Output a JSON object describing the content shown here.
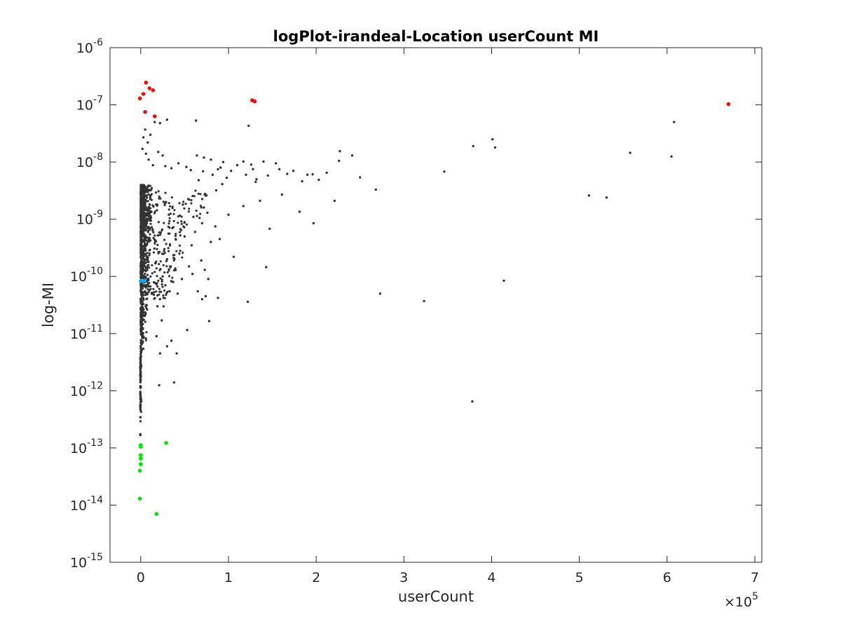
{
  "chart_data": {
    "type": "scatter",
    "title": "logPlot-irandeal-Location userCount MI",
    "xlabel": "userCount",
    "ylabel": "log-MI",
    "x_multiplier_label": "×10",
    "x_multiplier_exponent": "5",
    "xlim": [
      -35000,
      708000
    ],
    "ylim": [
      1e-15,
      1e-06
    ],
    "yscale": "log",
    "grid": false,
    "x_ticks": [
      {
        "value": 0,
        "label": "0"
      },
      {
        "value": 100000,
        "label": "1"
      },
      {
        "value": 200000,
        "label": "2"
      },
      {
        "value": 300000,
        "label": "3"
      },
      {
        "value": 400000,
        "label": "4"
      },
      {
        "value": 500000,
        "label": "5"
      },
      {
        "value": 600000,
        "label": "6"
      },
      {
        "value": 700000,
        "label": "7"
      }
    ],
    "y_ticks": [
      {
        "value": 1e-15,
        "base": "10",
        "exp": "-15"
      },
      {
        "value": 1e-14,
        "base": "10",
        "exp": "-14"
      },
      {
        "value": 1e-13,
        "base": "10",
        "exp": "-13"
      },
      {
        "value": 1e-12,
        "base": "10",
        "exp": "-12"
      },
      {
        "value": 1e-11,
        "base": "10",
        "exp": "-11"
      },
      {
        "value": 1e-10,
        "base": "10",
        "exp": "-10"
      },
      {
        "value": 1e-09,
        "base": "10",
        "exp": "-9"
      },
      {
        "value": 1e-08,
        "base": "10",
        "exp": "-8"
      },
      {
        "value": 1e-07,
        "base": "10",
        "exp": "-7"
      },
      {
        "value": 1e-06,
        "base": "10",
        "exp": "-6"
      }
    ],
    "series": [
      {
        "color": "#333333",
        "values": [
          [
            63000,
            5.3e-08
          ],
          [
            123000,
            4.3e-08
          ],
          [
            608000,
            5e-08
          ],
          [
            401000,
            2.5e-08
          ],
          [
            379000,
            1.9e-08
          ],
          [
            404000,
            1.8e-08
          ],
          [
            558000,
            1.45e-08
          ],
          [
            605000,
            1.25e-08
          ],
          [
            227000,
            1.55e-08
          ],
          [
            241000,
            1.3e-08
          ],
          [
            226000,
            1.05e-08
          ],
          [
            346000,
            6.8e-09
          ],
          [
            250000,
            5.4e-09
          ],
          [
            268000,
            3.3e-09
          ],
          [
            161000,
            2.7e-09
          ],
          [
            511000,
            2.6e-09
          ],
          [
            531000,
            2.4e-09
          ],
          [
            221000,
            2.1e-09
          ],
          [
            136000,
            2.1e-09
          ],
          [
            117000,
            1.7e-09
          ],
          [
            181000,
            1.35e-09
          ],
          [
            197000,
            8.5e-10
          ],
          [
            147000,
            6.8e-10
          ],
          [
            106000,
            2.2e-10
          ],
          [
            143000,
            1.45e-10
          ],
          [
            414000,
            8.4e-11
          ],
          [
            273000,
            5e-11
          ],
          [
            323000,
            3.7e-11
          ],
          [
            122000,
            3.6e-11
          ],
          [
            78000,
            1.65e-11
          ],
          [
            53000,
            1.15e-11
          ],
          [
            41000,
            4.5e-12
          ],
          [
            38000,
            1.4e-12
          ],
          [
            21000,
            1.25e-12
          ],
          [
            378000,
            6.5e-13
          ],
          [
            154000,
            9.5e-09
          ],
          [
            174000,
            7e-09
          ],
          [
            190000,
            6e-09
          ],
          [
            212000,
            6.5e-09
          ],
          [
            184000,
            4.6e-09
          ],
          [
            196000,
            6.1e-09
          ],
          [
            128000,
            7.5e-09
          ],
          [
            132000,
            5e-09
          ],
          [
            140000,
            1.02e-08
          ],
          [
            126000,
            9e-09
          ],
          [
            110000,
            8.8e-09
          ],
          [
            98000,
            5.3e-09
          ],
          [
            93000,
            4.1e-09
          ],
          [
            86000,
            3.2e-09
          ],
          [
            75000,
            2.6e-09
          ],
          [
            82000,
            6e-09
          ],
          [
            71000,
            6.9e-09
          ],
          [
            66000,
            4.8e-09
          ],
          [
            88000,
            7.5e-09
          ],
          [
            94000,
            1e-08
          ],
          [
            55000,
            2.2e-09
          ],
          [
            48000,
            1.8e-09
          ],
          [
            60000,
            1.1e-09
          ],
          [
            70000,
            8.5e-10
          ],
          [
            62000,
            6e-10
          ],
          [
            58000,
            3.5e-10
          ],
          [
            45000,
            2.8e-10
          ],
          [
            50000,
            5e-10
          ],
          [
            80000,
            4e-10
          ],
          [
            90000,
            4.5e-10
          ],
          [
            72000,
            1.6e-09
          ],
          [
            76000,
            1.3e-09
          ],
          [
            67000,
            1.05e-09
          ],
          [
            100000,
            1.2e-09
          ],
          [
            85000,
            7.5e-10
          ],
          [
            32000,
            1.2e-09
          ],
          [
            36000,
            7e-10
          ],
          [
            40000,
            4.4e-10
          ],
          [
            44000,
            2.5e-10
          ],
          [
            27000,
            3e-10
          ],
          [
            30000,
            2e-10
          ],
          [
            34000,
            1.5e-10
          ],
          [
            25000,
            1e-10
          ],
          [
            28000,
            7e-11
          ],
          [
            33000,
            5.5e-11
          ],
          [
            22000,
            4e-11
          ],
          [
            26000,
            3e-11
          ],
          [
            37000,
            8e-11
          ],
          [
            42000,
            5e-11
          ],
          [
            47000,
            9e-11
          ],
          [
            65000,
            5.5e-11
          ],
          [
            70000,
            4e-11
          ],
          [
            74000,
            4.5e-11
          ],
          [
            88000,
            4.2e-11
          ],
          [
            59000,
            1.1e-10
          ],
          [
            55000,
            1.5e-10
          ],
          [
            69000,
            1.9e-10
          ],
          [
            73000,
            1.3e-10
          ],
          [
            77000,
            9e-11
          ],
          [
            30000,
            6e-12
          ],
          [
            18000,
            9e-12
          ],
          [
            22000,
            4.5e-12
          ],
          [
            35000,
            7.5e-12
          ],
          [
            24000,
            1.7e-11
          ],
          [
            19000,
            3e-11
          ],
          [
            16000,
            5e-08
          ],
          [
            11000,
            3e-08
          ],
          [
            8000,
            2.2e-08
          ],
          [
            5000,
            3.7e-08
          ],
          [
            3000,
            2.7e-08
          ],
          [
            2000,
            1.7e-08
          ],
          [
            6000,
            1.4e-08
          ],
          [
            9000,
            1.1e-08
          ],
          [
            14000,
            8.8e-09
          ],
          [
            20000,
            1.5e-08
          ],
          [
            25000,
            1.3e-08
          ],
          [
            28000,
            8.5e-09
          ],
          [
            35000,
            7.8e-09
          ],
          [
            43000,
            9.5e-09
          ],
          [
            52000,
            8.2e-09
          ],
          [
            57000,
            7.2e-09
          ],
          [
            64000,
            1.3e-08
          ],
          [
            72000,
            1.2e-08
          ],
          [
            80000,
            1.1e-08
          ],
          [
            91000,
            8e-09
          ],
          [
            103000,
            7e-09
          ],
          [
            117000,
            1.02e-08
          ],
          [
            120000,
            6e-09
          ],
          [
            131000,
            4.5e-09
          ],
          [
            145000,
            5.8e-09
          ],
          [
            158000,
            7.5e-09
          ],
          [
            167000,
            6.2e-09
          ],
          [
            203000,
            4.9e-09
          ],
          [
            30000,
            5.5e-08
          ],
          [
            22000,
            4.8e-08
          ]
        ]
      },
      {
        "color": "#e8120c",
        "values": [
          [
            6000,
            2.45e-07
          ],
          [
            10000,
            1.95e-07
          ],
          [
            14000,
            1.8e-07
          ],
          [
            3000,
            1.55e-07
          ],
          [
            -1000,
            1.3e-07
          ],
          [
            5000,
            7.5e-08
          ],
          [
            16000,
            6.3e-08
          ],
          [
            127000,
            1.2e-07
          ],
          [
            130000,
            1.15e-07
          ],
          [
            670000,
            1.03e-07
          ]
        ]
      },
      {
        "color": "#00e600",
        "values": [
          [
            29000,
            1.22e-13
          ],
          [
            0,
            1.12e-13
          ],
          [
            0,
            1.05e-13
          ],
          [
            0,
            7.5e-14
          ],
          [
            0,
            6.5e-14
          ],
          [
            0,
            5.2e-14
          ],
          [
            -1000,
            4e-14
          ],
          [
            -1000,
            1.3e-14
          ],
          [
            18000,
            7e-15
          ]
        ]
      },
      {
        "color": "#1ba3e0",
        "values": [
          [
            0,
            8.3e-11
          ],
          [
            1500,
            8.4e-11
          ],
          [
            3000,
            8.3e-11
          ],
          [
            4500,
            8.4e-11
          ]
        ]
      }
    ],
    "dense_column": {
      "color": "#333333",
      "x_range": [
        0,
        14000
      ],
      "y_range": [
        4e-12,
        4e-09
      ],
      "note_count": 900
    },
    "sparse_column": {
      "color": "#333333",
      "x_range": [
        -500,
        1500
      ],
      "y_range": [
        1.5e-13,
        4e-12
      ],
      "note_count": 90
    }
  }
}
